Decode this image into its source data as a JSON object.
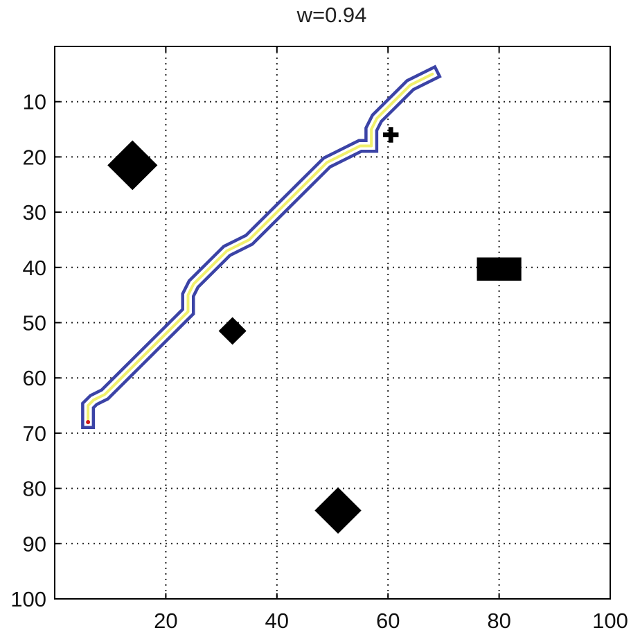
{
  "chart_data": {
    "type": "scatter",
    "title": "w=0.94",
    "xlabel": "",
    "ylabel": "",
    "xlim": [
      0,
      100
    ],
    "ylim": [
      0,
      100
    ],
    "y_axis_direction": "reversed",
    "grid": true,
    "grid_style": "dotted",
    "x_ticks": [
      20,
      40,
      60,
      80,
      100
    ],
    "y_ticks": [
      10,
      20,
      30,
      40,
      50,
      60,
      70,
      80,
      90,
      100
    ],
    "obstacles": [
      {
        "shape": "diamond",
        "x": 14,
        "y": 21.5,
        "size": 4.5
      },
      {
        "shape": "diamond",
        "x": 32,
        "y": 51.5,
        "size": 2.5
      },
      {
        "shape": "diamond",
        "x": 51,
        "y": 84,
        "size": 4.2
      },
      {
        "shape": "plus",
        "x": 60.5,
        "y": 16,
        "size": 1.4
      },
      {
        "shape": "rectangle",
        "x": 80,
        "y": 40.3,
        "width": 8,
        "height": 4.2
      }
    ],
    "series": [
      {
        "type": "line",
        "x": [
          6,
          6,
          7,
          9,
          11,
          13,
          15,
          17,
          19,
          21,
          23,
          24,
          24,
          25,
          27,
          29,
          31,
          33,
          35,
          37,
          39,
          41,
          43,
          45,
          47,
          49,
          51,
          53,
          55,
          57,
          57,
          58,
          60,
          62,
          64,
          66,
          68
        ],
        "y": [
          68,
          65,
          64,
          63,
          61,
          59,
          57,
          55,
          53,
          51,
          49,
          48,
          45,
          43,
          41,
          39,
          37,
          36,
          35,
          33,
          31,
          29,
          27,
          25,
          23,
          21,
          20,
          19,
          18,
          18,
          15,
          13,
          11,
          9,
          7,
          6,
          5
        ]
      }
    ],
    "colors": {
      "path_border": "#3b43a6",
      "path_core": "#f1f06c",
      "path_start": "#d01818",
      "obstacle": "#000000",
      "grid": "#222222",
      "axis": "#000000"
    }
  }
}
